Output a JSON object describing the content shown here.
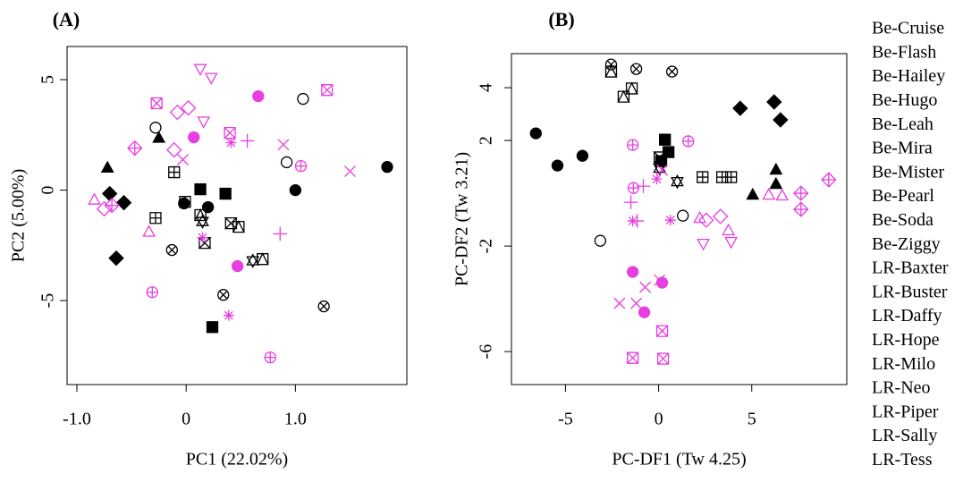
{
  "chart_data": [
    {
      "type": "scatter",
      "title": "(A)",
      "x_label": "PC1 (22.02%)",
      "y_label": "PC2 (5.00%)",
      "xlim": [
        -1.09,
        2.02
      ],
      "ylim": [
        -8.8,
        6.5
      ],
      "xticks": [
        {
          "value": -1,
          "label": "-1.0"
        },
        0,
        {
          "value": 1,
          "label": "1.0"
        }
      ],
      "yticks": [
        5,
        0,
        -5
      ],
      "series": [
        {
          "name": "Be-Cruise",
          "color": "#000000",
          "marker": "filled-circle",
          "x": [
            -0.02,
            0.2,
            1.0,
            1.84
          ],
          "values": [
            -0.6,
            -0.77,
            0,
            1.05
          ]
        },
        {
          "name": "Be-Flash",
          "color": "#000000",
          "marker": "filled-square",
          "x": [
            0.13,
            0.36,
            0.24
          ],
          "values": [
            0.04,
            -0.16,
            -6.2
          ]
        },
        {
          "name": "Be-Hailey",
          "color": "#000000",
          "marker": "filled-triangle",
          "x": [
            -0.72,
            -0.25
          ],
          "values": [
            1.0,
            2.35
          ]
        },
        {
          "name": "Be-Hugo",
          "color": "#000000",
          "marker": "filled-diamond",
          "x": [
            -0.7,
            -0.57,
            -0.64
          ],
          "values": [
            -0.16,
            -0.57,
            -3.08
          ]
        },
        {
          "name": "Be-Leah",
          "color": "#000000",
          "marker": "circle",
          "x": [
            -0.28,
            1.07,
            0.92
          ],
          "values": [
            2.83,
            4.13,
            1.26
          ]
        },
        {
          "name": "Be-Mira",
          "color": "#000000",
          "marker": "square-plus",
          "x": [
            -0.11,
            -0.01,
            -0.28
          ],
          "values": [
            0.81,
            -0.53,
            -1.26
          ]
        },
        {
          "name": "Be-Mister",
          "color": "#000000",
          "marker": "square-triangle",
          "x": [
            0.13,
            0.48,
            0.7
          ],
          "values": [
            -1.13,
            -1.66,
            -3.12
          ]
        },
        {
          "name": "Be-Pearl",
          "color": "#000000",
          "marker": "circle-x",
          "x": [
            -0.13,
            0.34,
            1.26
          ],
          "values": [
            -2.71,
            -4.74,
            -5.26
          ]
        },
        {
          "name": "Be-Soda",
          "color": "#000000",
          "marker": "star-david",
          "x": [
            0.15,
            0.61
          ],
          "values": [
            -1.42,
            -3.2
          ]
        },
        {
          "name": "Be-Ziggy",
          "color": "#000000",
          "marker": "hourglass",
          "x": [
            0.41,
            0.17
          ],
          "values": [
            -1.5,
            -2.39
          ]
        },
        {
          "name": "LR-Baxter",
          "color": "#e83ee0",
          "marker": "filled-circle",
          "x": [
            0.66,
            0.07,
            0.47
          ],
          "values": [
            4.25,
            2.39,
            -3.44
          ]
        },
        {
          "name": "LR-Buster",
          "color": "#e83ee0",
          "marker": "x",
          "x": [
            -0.03,
            0.89,
            1.5
          ],
          "values": [
            1.38,
            2.06,
            0.85
          ]
        },
        {
          "name": "LR-Daffy",
          "color": "#e83ee0",
          "marker": "plus",
          "x": [
            0.56,
            0.86
          ],
          "values": [
            2.23,
            -1.98
          ]
        },
        {
          "name": "LR-Hope",
          "color": "#e83ee0",
          "marker": "asterisk",
          "x": [
            0.41,
            0.15,
            0.39
          ],
          "values": [
            2.15,
            -2.15,
            -5.67
          ]
        },
        {
          "name": "LR-Milo",
          "color": "#e83ee0",
          "marker": "triangle-up",
          "x": [
            -0.84,
            -0.34
          ],
          "values": [
            -0.45,
            -1.9
          ]
        },
        {
          "name": "LR-Neo",
          "color": "#e83ee0",
          "marker": "diamond",
          "x": [
            -0.08,
            0.02,
            -0.11,
            -0.75
          ],
          "values": [
            3.52,
            3.72,
            1.82,
            -0.85
          ]
        },
        {
          "name": "LR-Piper",
          "color": "#e83ee0",
          "marker": "triangle-down",
          "x": [
            0.13,
            0.23,
            0.16
          ],
          "values": [
            5.5,
            5.1,
            3.12
          ]
        },
        {
          "name": "LR-Sally",
          "color": "#e83ee0",
          "marker": "square-x",
          "x": [
            -0.27,
            0.4,
            1.29
          ],
          "values": [
            3.93,
            2.59,
            4.53
          ]
        },
        {
          "name": "LR-Tess",
          "color": "#e83ee0",
          "marker": "diamond-plus",
          "x": [
            -0.47,
            -0.68
          ],
          "values": [
            1.9,
            -0.69
          ]
        },
        {
          "color": "#e83ee0",
          "marker": "circle-plus",
          "x": [
            1.05,
            -0.31,
            0.77
          ],
          "values": [
            1.09,
            -4.62,
            -7.57
          ]
        }
      ]
    },
    {
      "type": "scatter",
      "title": "(B)",
      "x_label": "PC-DF1 (Tw 4.25)",
      "y_label": "PC-DF2 (Tw 3.21)",
      "xlim": [
        -7.9,
        10.1
      ],
      "ylim": [
        -7.25,
        5.29
      ],
      "xticks": [
        -5,
        0,
        5
      ],
      "yticks": [
        4,
        2,
        -2,
        -6
      ],
      "series": [
        {
          "color": "#000000",
          "marker": "filled-circle",
          "x": [
            -6.59,
            -5.43,
            -4.09
          ],
          "values": [
            2.27,
            1.05,
            1.42
          ]
        },
        {
          "color": "#000000",
          "marker": "filled-square",
          "x": [
            0.34,
            0.53,
            0.14
          ],
          "values": [
            2.03,
            1.56,
            1.22
          ]
        },
        {
          "color": "#000000",
          "marker": "filled-triangle",
          "x": [
            6.3,
            5.05,
            6.3
          ],
          "values": [
            0.88,
            -0.07,
            0.34
          ]
        },
        {
          "color": "#000000",
          "marker": "filled-diamond",
          "x": [
            4.38,
            6.2,
            6.54
          ],
          "values": [
            3.22,
            3.46,
            2.78
          ]
        },
        {
          "color": "#000000",
          "marker": "circle",
          "x": [
            -3.13,
            1.3
          ],
          "values": [
            -1.8,
            -0.85
          ]
        },
        {
          "color": "#000000",
          "marker": "square-plus",
          "x": [
            2.36,
            3.41,
            3.89
          ],
          "values": [
            0.61,
            0.61,
            0.61
          ]
        },
        {
          "color": "#000000",
          "marker": "square-triangle",
          "x": [
            -2.55,
            -1.88,
            -1.44
          ],
          "values": [
            4.61,
            3.66,
            3.97
          ]
        },
        {
          "color": "#000000",
          "marker": "circle-x",
          "x": [
            -2.55,
            -1.2,
            0.72
          ],
          "values": [
            4.88,
            4.71,
            4.61
          ]
        },
        {
          "color": "#000000",
          "marker": "star-david",
          "x": [
            0.05,
            1.0
          ],
          "values": [
            0.95,
            0.44
          ]
        },
        {
          "color": "#000000",
          "marker": "hourglass",
          "x": [
            0.05
          ],
          "values": [
            1.36
          ]
        },
        {
          "color": "#e83ee0",
          "marker": "filled-circle",
          "x": [
            -1.39,
            0.19,
            -0.77
          ],
          "values": [
            -2.98,
            -3.39,
            -4.51
          ]
        },
        {
          "color": "#e83ee0",
          "marker": "x",
          "x": [
            0.19,
            -0.72,
            -1.2,
            -2.1,
            0.05
          ],
          "values": [
            0.88,
            -3.56,
            -4.17,
            -4.17,
            -3.29
          ]
        },
        {
          "color": "#e83ee0",
          "marker": "plus",
          "x": [
            -0.82,
            -1.49,
            -1.15
          ],
          "values": [
            0.27,
            -0.34,
            -1.05
          ]
        },
        {
          "color": "#e83ee0",
          "marker": "asterisk",
          "x": [
            -0.1,
            0.63,
            -1.39
          ],
          "values": [
            0.54,
            -1.02,
            -1.05
          ]
        },
        {
          "color": "#e83ee0",
          "marker": "triangle-up",
          "x": [
            2.21,
            3.75,
            5.91,
            6.63
          ],
          "values": [
            -0.95,
            -1.42,
            -0.07,
            -0.1
          ]
        },
        {
          "color": "#e83ee0",
          "marker": "diamond",
          "x": [
            2.55,
            3.32
          ],
          "values": [
            -1.02,
            -0.88
          ]
        },
        {
          "color": "#e83ee0",
          "marker": "triangle-down",
          "x": [
            2.4,
            3.89
          ],
          "values": [
            -1.9,
            -1.83
          ]
        },
        {
          "color": "#e83ee0",
          "marker": "square-x",
          "x": [
            0.19,
            -1.39,
            0.24
          ],
          "values": [
            -5.22,
            -6.24,
            -6.27
          ]
        },
        {
          "color": "#e83ee0",
          "marker": "diamond-plus",
          "x": [
            7.64,
            7.64,
            9.13
          ],
          "values": [
            0,
            -0.61,
            0.51
          ]
        },
        {
          "color": "#e83ee0",
          "marker": "circle-plus",
          "x": [
            -1.39,
            1.59,
            -1.35
          ],
          "values": [
            1.83,
            1.97,
            0.2
          ]
        }
      ]
    }
  ]
}
